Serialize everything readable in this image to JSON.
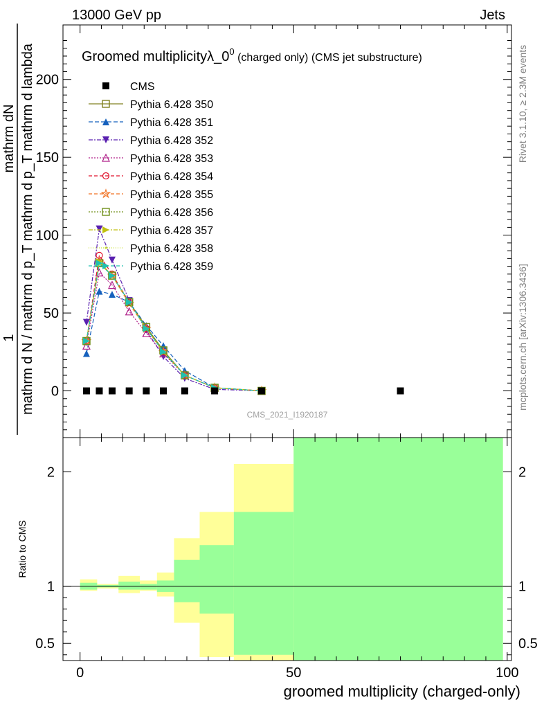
{
  "header": {
    "left": "13000 GeV pp",
    "right": "Jets"
  },
  "side_labels": {
    "rivet": "Rivet 3.1.10, ≥ 2.3M events",
    "mcplots": "mcplots.cern.ch [arXiv:1306.3436]"
  },
  "chart_data": [
    {
      "type": "line",
      "panel": "main",
      "title_main": "Groomed multiplicityλ_0",
      "title_sup": "0",
      "title_rest": " (charged only) (CMS jet substructure)",
      "ylabel_numerator_top": "mathrm dN",
      "ylabel_numerator_bottom": "1",
      "ylabel_main": "mathrm d N / mathrm d p_T mathrm d p_T mathrm d lambda",
      "watermark": "CMS_2021_I1920187",
      "xlim": [
        -4,
        101
      ],
      "ylim": [
        -30,
        235
      ],
      "yticks": [
        "0",
        "50",
        "100",
        "150",
        "200"
      ],
      "legend_placement": "top-left",
      "series": [
        {
          "name": "CMS",
          "color": "#000000",
          "marker": "square-filled",
          "dash": "none",
          "x": [
            1.5,
            4.5,
            7.5,
            11.5,
            15.5,
            19.5,
            24.5,
            31.5,
            42.5,
            75
          ],
          "y": [
            0,
            0,
            0,
            0,
            0,
            0,
            0,
            0,
            0,
            0
          ]
        },
        {
          "name": "Pythia 6.428 350",
          "color": "#808020",
          "marker": "square-open",
          "dash": "solid",
          "x": [
            1.5,
            4.5,
            7.5,
            11.5,
            15.5,
            19.5,
            24.5,
            31.5,
            42.5
          ],
          "y": [
            32,
            82,
            74,
            57,
            41,
            26,
            10,
            2,
            0
          ]
        },
        {
          "name": "Pythia 6.428 351",
          "color": "#1560bd",
          "marker": "triangle-up-filled",
          "dash": "6,3",
          "x": [
            1.5,
            4.5,
            7.5,
            11.5,
            15.5,
            19.5,
            24.5,
            31.5,
            42.5
          ],
          "y": [
            24,
            64,
            62,
            57,
            42,
            29,
            13,
            2,
            0
          ]
        },
        {
          "name": "Pythia 6.428 352",
          "color": "#5a20b0",
          "marker": "triangle-down-filled",
          "dash": "6,2,2,2",
          "x": [
            1.5,
            4.5,
            7.5,
            11.5,
            15.5,
            19.5,
            24.5,
            31.5,
            42.5
          ],
          "y": [
            44,
            104,
            84,
            58,
            39,
            22,
            8,
            1,
            0
          ]
        },
        {
          "name": "Pythia 6.428 353",
          "color": "#b0208a",
          "marker": "triangle-up-open",
          "dash": "2,2",
          "x": [
            1.5,
            4.5,
            7.5,
            11.5,
            15.5,
            19.5,
            24.5,
            31.5,
            42.5
          ],
          "y": [
            29,
            76,
            68,
            51,
            37,
            24,
            10,
            2,
            0
          ]
        },
        {
          "name": "Pythia 6.428 354",
          "color": "#e0102a",
          "marker": "circle-open",
          "dash": "5,3",
          "x": [
            1.5,
            4.5,
            7.5,
            11.5,
            15.5,
            19.5,
            24.5,
            31.5,
            42.5
          ],
          "y": [
            32,
            87,
            75,
            57,
            40,
            25,
            10,
            2,
            0
          ]
        },
        {
          "name": "Pythia 6.428 355",
          "color": "#f07020",
          "marker": "star-open",
          "dash": "5,3",
          "x": [
            1.5,
            4.5,
            7.5,
            11.5,
            15.5,
            19.5,
            24.5,
            31.5,
            42.5
          ],
          "y": [
            32,
            83,
            74,
            56,
            40,
            25,
            10,
            2,
            0
          ]
        },
        {
          "name": "Pythia 6.428 356",
          "color": "#70901a",
          "marker": "square-open",
          "dash": "2,2",
          "x": [
            1.5,
            4.5,
            7.5,
            11.5,
            15.5,
            19.5,
            24.5,
            31.5,
            42.5
          ],
          "y": [
            32,
            82,
            74,
            57,
            41,
            26,
            10,
            2,
            0
          ]
        },
        {
          "name": "Pythia 6.428 357",
          "color": "#c0c010",
          "marker": "triangle-right-filled",
          "dash": "6,2,2,2",
          "x": [
            1.5,
            4.5,
            7.5,
            11.5,
            15.5,
            19.5,
            24.5,
            31.5,
            42.5
          ],
          "y": [
            32,
            83,
            74,
            57,
            40,
            25,
            10,
            2,
            0
          ]
        },
        {
          "name": "Pythia 6.428 358",
          "color": "#c8e030",
          "marker": "dot",
          "dash": "1,2",
          "x": [
            1.5,
            4.5,
            7.5,
            11.5,
            15.5,
            19.5,
            24.5,
            31.5,
            42.5
          ],
          "y": [
            32,
            82,
            74,
            57,
            40,
            25,
            10,
            2,
            0
          ]
        },
        {
          "name": "Pythia 6.428 359",
          "color": "#20c0b0",
          "marker": "triangle-right-filled",
          "dash": "5,3",
          "x": [
            1.5,
            4.5,
            7.5,
            11.5,
            15.5,
            19.5,
            24.5,
            31.5,
            42.5
          ],
          "y": [
            32,
            82,
            74,
            57,
            40,
            25,
            10,
            2,
            0
          ]
        }
      ]
    },
    {
      "type": "area",
      "panel": "ratio",
      "xlabel": "groomed multiplicity (charged-only)",
      "ylabel": "Ratio to CMS",
      "xlim": [
        -4,
        101
      ],
      "ylim": [
        0.35,
        2.3
      ],
      "xticks": [
        "0",
        "50",
        "100"
      ],
      "yticks": [
        "0.5",
        "1",
        "2"
      ],
      "reference_line": 1.0,
      "bands": [
        {
          "name": "stat",
          "color": "#99ff99",
          "bins": [
            [
              0,
              4,
              0.97,
              1.03
            ],
            [
              4,
              9,
              0.99,
              1.01
            ],
            [
              9,
              14,
              0.97,
              1.04
            ],
            [
              14,
              18,
              0.97,
              1.02
            ],
            [
              18,
              22,
              0.95,
              1.05
            ],
            [
              22,
              28,
              0.86,
              1.23
            ],
            [
              28,
              36,
              0.76,
              1.36
            ],
            [
              36,
              50,
              0.4,
              1.65
            ],
            [
              50,
              99,
              0.35,
              2.3
            ]
          ]
        },
        {
          "name": "syst",
          "color": "#ffff99",
          "bins": [
            [
              0,
              4,
              0.96,
              1.06
            ],
            [
              4,
              9,
              0.98,
              1.02
            ],
            [
              9,
              14,
              0.94,
              1.09
            ],
            [
              14,
              18,
              0.96,
              1.05
            ],
            [
              18,
              22,
              0.91,
              1.12
            ],
            [
              22,
              28,
              0.68,
              1.42
            ],
            [
              28,
              36,
              0.38,
              1.65
            ],
            [
              36,
              50,
              0.35,
              2.07
            ],
            [
              50,
              99,
              0.35,
              2.3
            ]
          ]
        }
      ]
    }
  ]
}
